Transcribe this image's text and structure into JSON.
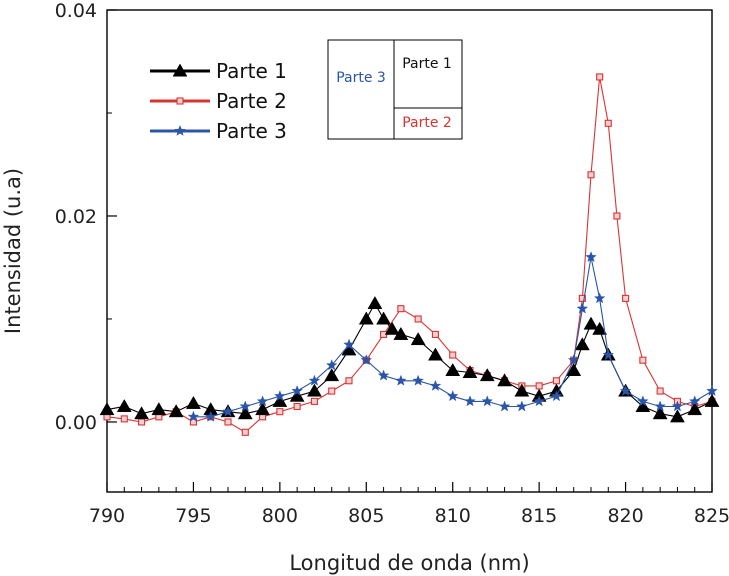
{
  "chart_data": {
    "type": "scatter",
    "xlabel": "Longitud de onda (nm)",
    "ylabel": "Intensidad (u.a)",
    "xlim": [
      790,
      825
    ],
    "ylim": [
      -0.0068,
      0.04
    ],
    "x_ticks": [
      790,
      795,
      800,
      805,
      810,
      815,
      820,
      825
    ],
    "x_tick_labels": [
      "790",
      "795",
      "800",
      "805",
      "810",
      "815",
      "820",
      "825"
    ],
    "y_ticks": [
      0.0,
      0.02,
      0.04
    ],
    "y_tick_labels": [
      "0.00",
      "0.02",
      "0.04"
    ],
    "grid": false,
    "legend_position": "top-left",
    "series": [
      {
        "name": "Parte 1",
        "color": "#000000",
        "marker": "triangle",
        "points": [
          [
            790,
            0.0012
          ],
          [
            791,
            0.0015
          ],
          [
            792,
            0.0008
          ],
          [
            793,
            0.0012
          ],
          [
            794,
            0.001
          ],
          [
            795,
            0.0018
          ],
          [
            796,
            0.0012
          ],
          [
            797,
            0.001
          ],
          [
            798,
            0.0008
          ],
          [
            799,
            0.0012
          ],
          [
            800,
            0.002
          ],
          [
            801,
            0.0025
          ],
          [
            802,
            0.003
          ],
          [
            803,
            0.0045
          ],
          [
            804,
            0.007
          ],
          [
            805,
            0.01
          ],
          [
            805.5,
            0.0115
          ],
          [
            806,
            0.01
          ],
          [
            806.5,
            0.009
          ],
          [
            807,
            0.0085
          ],
          [
            808,
            0.008
          ],
          [
            809,
            0.0065
          ],
          [
            810,
            0.005
          ],
          [
            811,
            0.0048
          ],
          [
            812,
            0.0045
          ],
          [
            813,
            0.004
          ],
          [
            814,
            0.003
          ],
          [
            815,
            0.0025
          ],
          [
            816,
            0.003
          ],
          [
            817,
            0.005
          ],
          [
            817.5,
            0.0075
          ],
          [
            818,
            0.0095
          ],
          [
            818.5,
            0.009
          ],
          [
            819,
            0.0065
          ],
          [
            820,
            0.003
          ],
          [
            821,
            0.0015
          ],
          [
            822,
            0.0008
          ],
          [
            823,
            0.0005
          ],
          [
            824,
            0.0012
          ],
          [
            825,
            0.002
          ]
        ]
      },
      {
        "name": "Parte 2",
        "color": "#d93434",
        "marker": "square",
        "points": [
          [
            790,
            0.0005
          ],
          [
            791,
            0.0003
          ],
          [
            792,
            0.0
          ],
          [
            793,
            0.0005
          ],
          [
            794,
            0.001
          ],
          [
            795,
            0.0
          ],
          [
            796,
            0.0005
          ],
          [
            797,
            0.0
          ],
          [
            798,
            -0.001
          ],
          [
            799,
            0.0005
          ],
          [
            800,
            0.001
          ],
          [
            801,
            0.0015
          ],
          [
            802,
            0.002
          ],
          [
            803,
            0.003
          ],
          [
            804,
            0.004
          ],
          [
            805,
            0.006
          ],
          [
            806,
            0.0085
          ],
          [
            807,
            0.011
          ],
          [
            808,
            0.01
          ],
          [
            809,
            0.0085
          ],
          [
            810,
            0.0065
          ],
          [
            811,
            0.005
          ],
          [
            812,
            0.0045
          ],
          [
            813,
            0.004
          ],
          [
            814,
            0.0035
          ],
          [
            815,
            0.0035
          ],
          [
            816,
            0.004
          ],
          [
            817,
            0.006
          ],
          [
            817.5,
            0.012
          ],
          [
            818,
            0.024
          ],
          [
            818.5,
            0.0335
          ],
          [
            819,
            0.029
          ],
          [
            819.5,
            0.02
          ],
          [
            820,
            0.012
          ],
          [
            821,
            0.006
          ],
          [
            822,
            0.003
          ],
          [
            823,
            0.002
          ],
          [
            824,
            0.0015
          ],
          [
            825,
            0.002
          ]
        ]
      },
      {
        "name": "Parte 3",
        "color": "#2a55a8",
        "marker": "star",
        "points": [
          [
            795,
            0.0005
          ],
          [
            796,
            0.0005
          ],
          [
            797,
            0.001
          ],
          [
            798,
            0.0015
          ],
          [
            799,
            0.002
          ],
          [
            800,
            0.0025
          ],
          [
            801,
            0.003
          ],
          [
            802,
            0.004
          ],
          [
            803,
            0.0055
          ],
          [
            804,
            0.0075
          ],
          [
            805,
            0.006
          ],
          [
            806,
            0.0045
          ],
          [
            807,
            0.004
          ],
          [
            808,
            0.004
          ],
          [
            809,
            0.0035
          ],
          [
            810,
            0.0025
          ],
          [
            811,
            0.002
          ],
          [
            812,
            0.002
          ],
          [
            813,
            0.0015
          ],
          [
            814,
            0.0015
          ],
          [
            815,
            0.002
          ],
          [
            816,
            0.0025
          ],
          [
            817,
            0.006
          ],
          [
            817.5,
            0.011
          ],
          [
            818,
            0.016
          ],
          [
            818.5,
            0.012
          ],
          [
            819,
            0.0065
          ],
          [
            820,
            0.003
          ],
          [
            821,
            0.002
          ],
          [
            822,
            0.0015
          ],
          [
            823,
            0.0015
          ],
          [
            824,
            0.002
          ],
          [
            825,
            0.003
          ]
        ]
      }
    ],
    "inset": {
      "left_label": "Parte 3",
      "top_right_label": "Parte 1",
      "bottom_right_label": "Parte 2",
      "left_color": "#2a55a8",
      "top_right_color": "#111111",
      "bottom_right_color": "#d93434"
    }
  }
}
